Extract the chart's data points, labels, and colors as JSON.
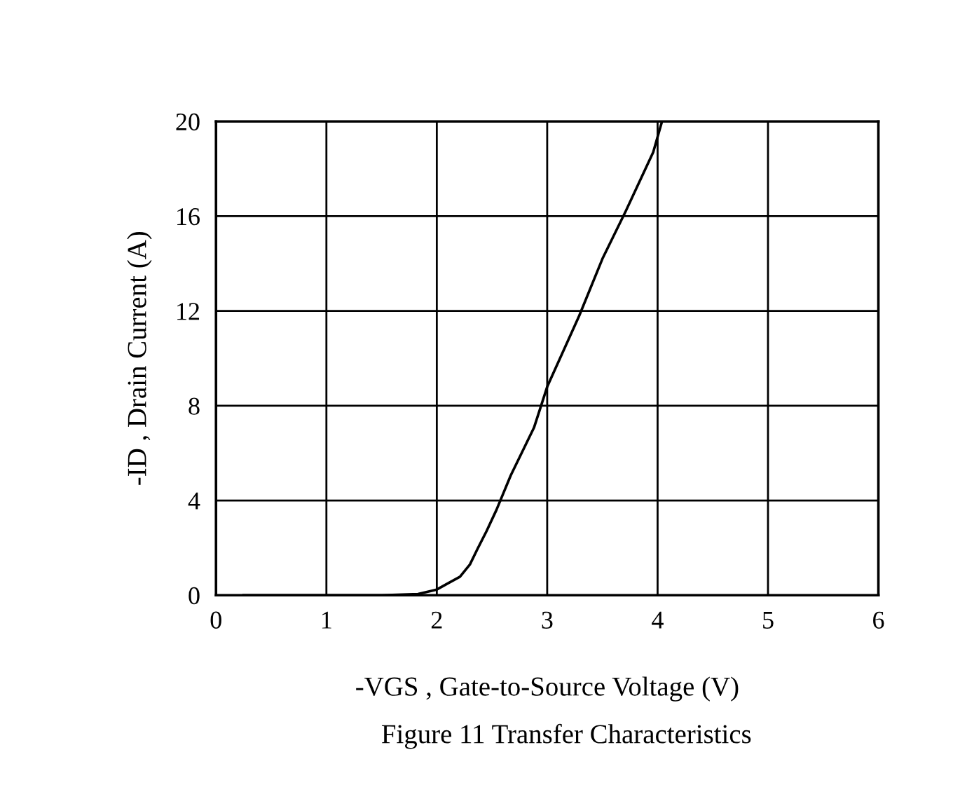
{
  "chart_data": {
    "type": "line",
    "xlabel": "-VGS , Gate-to-Source Voltage (V)",
    "ylabel": "-ID , Drain Current (A)",
    "annotations": [
      "Figure 11 Transfer Characteristics"
    ],
    "series": [
      {
        "color": "#000000",
        "x": [
          0.25,
          1.0,
          1.5,
          1.83,
          2.0,
          2.1,
          2.21,
          2.3,
          2.37,
          2.45,
          2.54,
          2.67,
          2.88,
          3.0,
          3.29,
          3.5,
          3.71,
          3.96,
          4.04
        ],
        "values": [
          0,
          0,
          0,
          0.05,
          0.24,
          0.5,
          0.78,
          1.3,
          1.97,
          2.7,
          3.6,
          5.06,
          7.07,
          8.8,
          11.8,
          14.2,
          16.2,
          18.7,
          20
        ]
      }
    ],
    "xlim": [
      0,
      6
    ],
    "ylim": [
      0,
      20
    ],
    "xticks": [
      0,
      1,
      2,
      3,
      4,
      5,
      6
    ],
    "yticks": [
      0,
      4,
      8,
      12,
      16,
      20
    ],
    "grid": true,
    "legend": false,
    "marker": "none",
    "line_style": "solid"
  }
}
